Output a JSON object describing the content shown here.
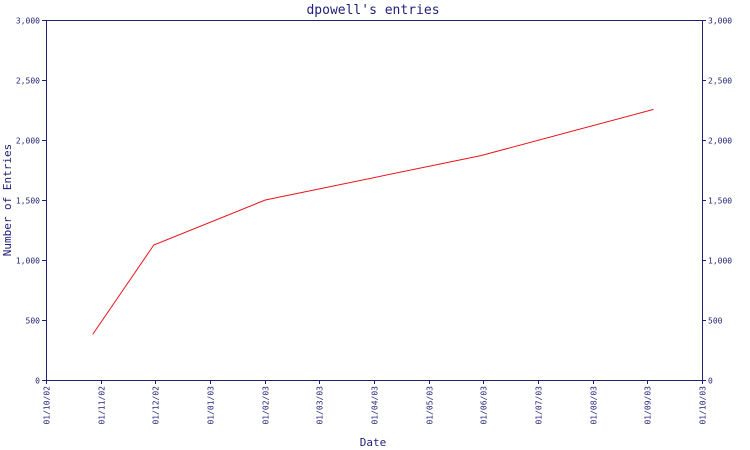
{
  "chart_data": {
    "type": "line",
    "title": "dpowell's entries",
    "xlabel": "Date",
    "ylabel": "Number of Entries",
    "x_ticks": [
      "01/10/02",
      "01/11/02",
      "01/12/02",
      "01/01/03",
      "01/02/03",
      "01/03/03",
      "01/04/03",
      "01/05/03",
      "01/06/03",
      "01/07/03",
      "01/08/03",
      "01/09/03",
      "01/10/03"
    ],
    "y_ticks": [
      "0",
      "500",
      "1,000",
      "1,500",
      "2,000",
      "2,500",
      "3,000"
    ],
    "ylim": [
      0,
      3000
    ],
    "xlim": [
      "2002-10-01",
      "2003-10-01"
    ],
    "grid": false,
    "right_axis": true,
    "series": [
      {
        "color": "#e8141b",
        "points": [
          {
            "x": "2002-10-27",
            "y": 380
          },
          {
            "x": "2002-11-30",
            "y": 1125
          },
          {
            "x": "2003-01-31",
            "y": 1500
          },
          {
            "x": "2003-05-31",
            "y": 1870
          },
          {
            "x": "2003-09-04",
            "y": 2255
          }
        ]
      }
    ],
    "colors": {
      "axis": "#1f1f7a",
      "text": "#1f1f7a",
      "line": "#e8141b"
    }
  }
}
